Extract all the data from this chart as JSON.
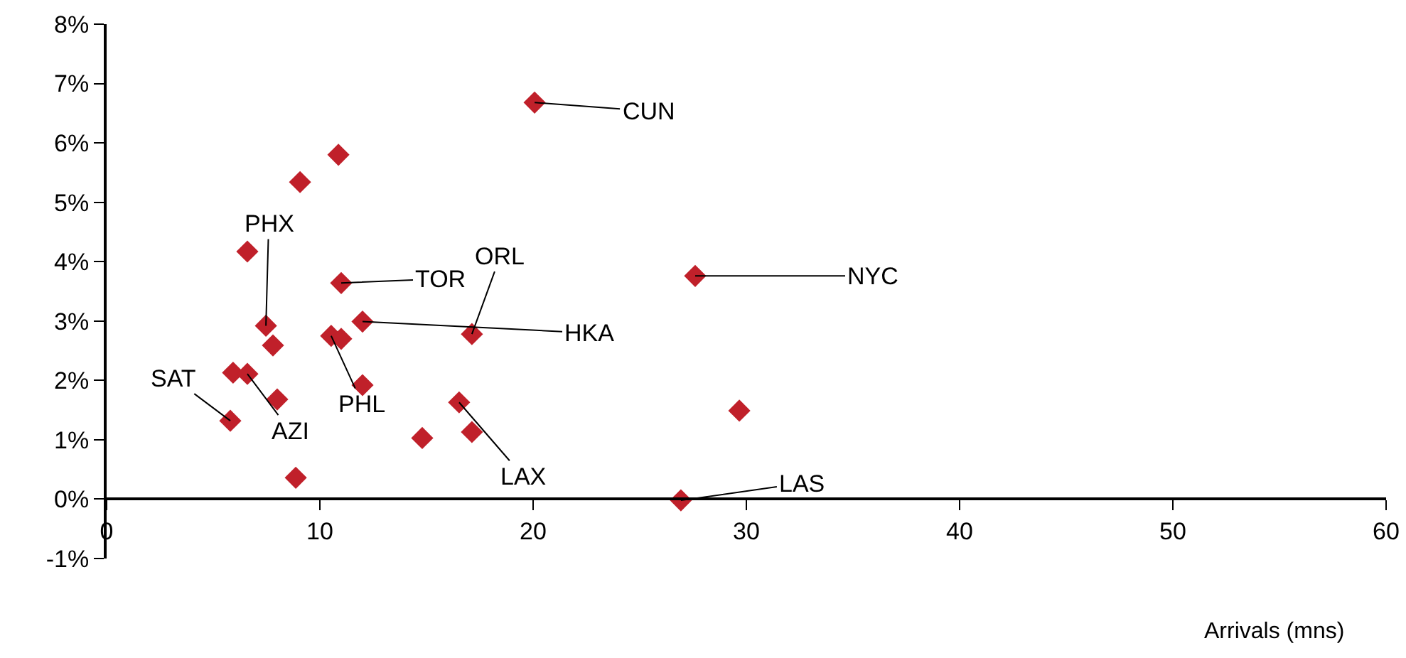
{
  "chart_data": {
    "type": "scatter",
    "xlabel": "Arrivals (mns)",
    "x": [
      20.07,
      27.6,
      10.87,
      9.07,
      6.6,
      7.47,
      11.0,
      12.0,
      17.13,
      10.53,
      11.0,
      7.8,
      5.93,
      6.6,
      5.8,
      8.0,
      12.0,
      16.53,
      17.13,
      14.8,
      8.87,
      29.67,
      26.93
    ],
    "values": [
      6.68,
      3.76,
      5.8,
      5.34,
      4.17,
      2.92,
      3.64,
      2.99,
      2.78,
      2.75,
      2.7,
      2.59,
      2.13,
      2.11,
      1.32,
      1.68,
      1.92,
      1.63,
      1.13,
      1.03,
      0.36,
      1.49,
      -0.02
    ],
    "color": "#c0202a",
    "marker": "diamond",
    "grid": false,
    "legend": false,
    "xlim": [
      0,
      60
    ],
    "xticks": [
      0,
      10,
      20,
      30,
      40,
      50,
      60
    ],
    "ylim": [
      -1,
      8
    ],
    "yticks": [
      {
        "value": -1,
        "label": "-1%"
      },
      {
        "value": 0,
        "label": "0%"
      },
      {
        "value": 1,
        "label": "1%"
      },
      {
        "value": 2,
        "label": "2%"
      },
      {
        "value": 3,
        "label": "3%"
      },
      {
        "value": 4,
        "label": "4%"
      },
      {
        "value": 5,
        "label": "5%"
      },
      {
        "value": 6,
        "label": "6%"
      },
      {
        "value": 7,
        "label": "7%"
      },
      {
        "value": 8,
        "label": "8%"
      }
    ],
    "annotations": [
      {
        "text": "CUN",
        "x": 20.07,
        "y": 6.68
      },
      {
        "text": "NYC",
        "x": 27.6,
        "y": 3.76
      },
      {
        "text": "TOR",
        "x": 11.0,
        "y": 3.64
      },
      {
        "text": "ORL",
        "x": 17.13,
        "y": 2.78
      },
      {
        "text": "HKA",
        "x": 12.0,
        "y": 2.99
      },
      {
        "text": "PHX",
        "x": 7.47,
        "y": 2.92
      },
      {
        "text": "SAT",
        "x": 5.8,
        "y": 1.32
      },
      {
        "text": "AZI",
        "x": 6.6,
        "y": 2.11
      },
      {
        "text": "PHL",
        "x": 10.53,
        "y": 2.75
      },
      {
        "text": "LAX",
        "x": 16.53,
        "y": 1.63
      },
      {
        "text": "LAS",
        "x": 26.93,
        "y": -0.02
      }
    ]
  }
}
